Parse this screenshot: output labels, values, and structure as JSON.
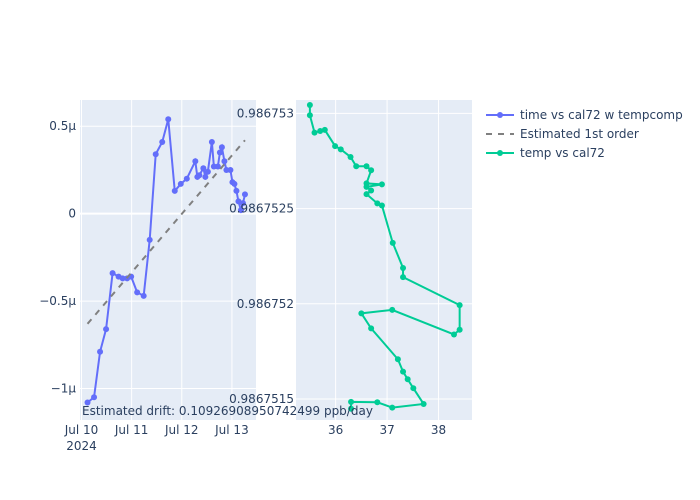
{
  "chart_data": [
    {
      "type": "line",
      "name": "time vs cal72 w tempcomp",
      "x_unit": "days since Jul 10 2024",
      "xticks": [
        {
          "v": 0,
          "label": "Jul 10",
          "sub": "2024"
        },
        {
          "v": 1,
          "label": "Jul 11",
          "sub": ""
        },
        {
          "v": 2,
          "label": "Jul 12",
          "sub": ""
        },
        {
          "v": 3,
          "label": "Jul 13",
          "sub": ""
        }
      ],
      "yticks": [
        {
          "v": 0.5,
          "label": "0.5µ"
        },
        {
          "v": 0,
          "label": "0"
        },
        {
          "v": -0.5,
          "label": "−0.5µ"
        },
        {
          "v": -1,
          "label": "−1µ"
        }
      ],
      "xlim": [
        -0.03,
        3.48
      ],
      "ylim": [
        -1.18,
        0.65
      ],
      "series": [
        {
          "name": "time vs cal72 w tempcomp",
          "color": "#636efa",
          "mode": "lines+markers",
          "x": [
            0.12,
            0.25,
            0.37,
            0.49,
            0.62,
            0.74,
            0.82,
            0.91,
            0.99,
            1.11,
            1.24,
            1.36,
            1.48,
            1.61,
            1.73,
            1.86,
            1.98,
            2.1,
            2.27,
            2.31,
            2.35,
            2.43,
            2.47,
            2.52,
            2.6,
            2.64,
            2.72,
            2.76,
            2.8,
            2.85,
            2.89,
            2.97,
            3.01,
            3.05,
            3.09,
            3.13,
            3.18,
            3.22,
            3.26
          ],
          "y": [
            -1.08,
            -1.05,
            -0.79,
            -0.66,
            -0.34,
            -0.36,
            -0.37,
            -0.37,
            -0.36,
            -0.45,
            -0.47,
            -0.15,
            0.34,
            0.41,
            0.54,
            0.13,
            0.17,
            0.2,
            0.3,
            0.21,
            0.22,
            0.26,
            0.21,
            0.24,
            0.41,
            0.27,
            0.27,
            0.35,
            0.38,
            0.3,
            0.25,
            0.25,
            0.18,
            0.17,
            0.13,
            0.07,
            0.02,
            0.06,
            0.11
          ]
        },
        {
          "name": "Estimated 1st order",
          "color": "#808080",
          "mode": "dash",
          "x": [
            0.12,
            3.26
          ],
          "y": [
            -0.63,
            0.42
          ]
        }
      ],
      "annotation": "Estimated drift:  0.1092690895074249​9 ppb/day"
    },
    {
      "type": "line",
      "name": "temp vs cal72",
      "xticks": [
        {
          "v": 36,
          "label": "36"
        },
        {
          "v": 37,
          "label": "37"
        },
        {
          "v": 38,
          "label": "38"
        }
      ],
      "yticks": [
        {
          "v": 0.986753,
          "label": "0.986753"
        },
        {
          "v": 0.9867525,
          "label": "0.9867525"
        },
        {
          "v": 0.986752,
          "label": "0.986752"
        },
        {
          "v": 0.9867515,
          "label": "0.9867515"
        }
      ],
      "xlim": [
        35.23,
        38.65
      ],
      "ylim": [
        0.98675139,
        0.98675307
      ],
      "series": [
        {
          "name": "temp vs cal72",
          "color": "#00cc96",
          "mode": "lines+markers",
          "x": [
            35.5,
            35.5,
            35.59,
            35.7,
            35.79,
            35.99,
            36.1,
            36.29,
            36.4,
            36.6,
            36.69,
            36.6,
            36.9,
            36.6,
            36.69,
            36.6,
            36.81,
            36.9,
            37.11,
            37.31,
            37.31,
            38.41,
            38.41,
            38.3,
            37.1,
            36.5,
            36.69,
            37.21,
            37.31,
            37.4,
            37.51,
            37.71,
            37.1,
            36.81,
            36.3,
            36.3
          ],
          "y": [
            0.986753044,
            0.98675299,
            0.986752899,
            0.986752907,
            0.986752913,
            0.986752828,
            0.986752811,
            0.986752771,
            0.986752722,
            0.986752722,
            0.986752701,
            0.986752632,
            0.986752627,
            0.986752614,
            0.986752595,
            0.986752576,
            0.986752527,
            0.986752516,
            0.98675232,
            0.986752188,
            0.98675214,
            0.986751993,
            0.986751864,
            0.986751839,
            0.986751968,
            0.98675195,
            0.986751871,
            0.986751709,
            0.986751644,
            0.986751604,
            0.986751557,
            0.986751474,
            0.986751455,
            0.986751483,
            0.986751485,
            0.986751449
          ]
        }
      ]
    }
  ],
  "legend": [
    {
      "label": "time vs cal72 w tempcomp",
      "color": "#636efa",
      "style": "line-marker"
    },
    {
      "label": "Estimated 1st order",
      "color": "#808080",
      "style": "dash"
    },
    {
      "label": "temp vs cal72",
      "color": "#00cc96",
      "style": "line-marker"
    }
  ],
  "annotation_text": "Estimated drift:  0.10926908950742499 ppb/day"
}
